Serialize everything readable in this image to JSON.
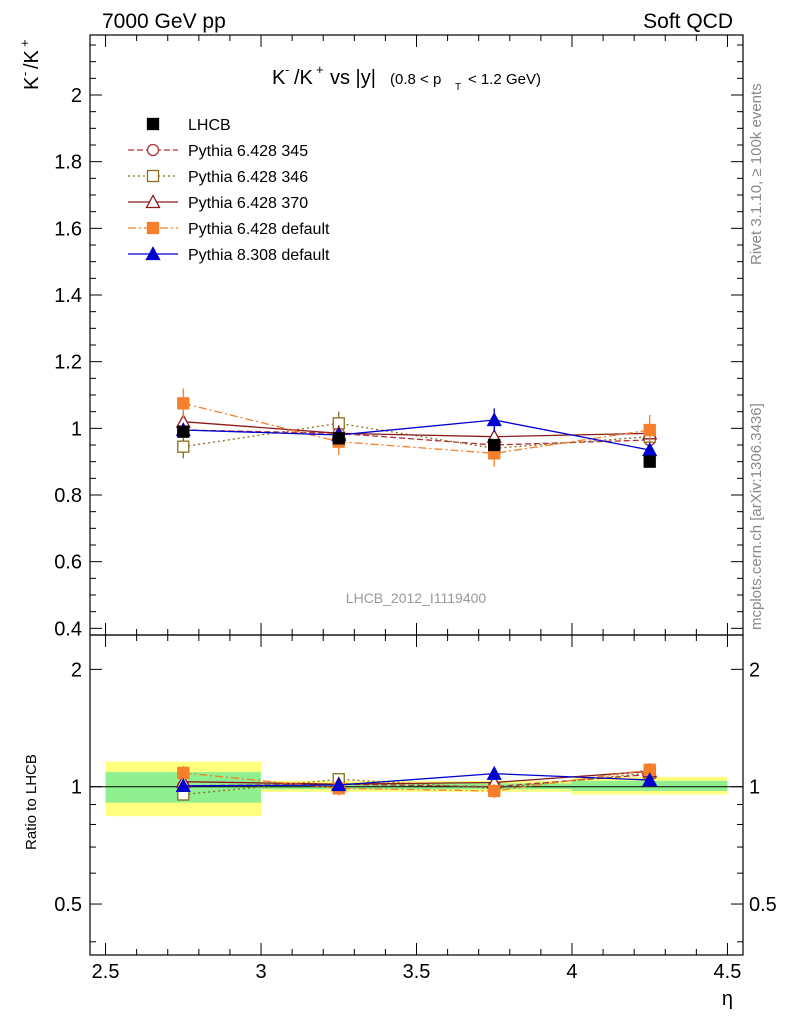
{
  "header": {
    "left": "7000 GeV pp",
    "right": "Soft QCD"
  },
  "side": {
    "rivet": "Rivet 3.1.10, ≥ 100k events",
    "mcplots": "mcplots.cern.ch [arXiv:1306.3436]"
  },
  "colors": {
    "lhcb": "#000000",
    "p345": "#b0303f",
    "p346": "#8b6d1e",
    "p370": "#8b1a1a",
    "pdefault": "#f57f2a",
    "p8": "#0000d0",
    "band_inner": "#90f090",
    "band_outer": "#ffff80"
  },
  "chart_data": [
    {
      "type": "scatter",
      "title": "K⁻/K⁺ vs |y|(0.8 < p_T < 1.2 GeV)",
      "title_main": "K",
      "title_vs": "vs |y|",
      "title_paren_open": "(0.8 < p",
      "title_paren_sub": "T",
      "title_paren_close": "< 1.2 GeV)",
      "ylabel": "K⁻/K⁺",
      "watermark": "LHCB_2012_I1119400",
      "xlim": [
        2.45,
        4.55
      ],
      "ylim": [
        0.38,
        2.18
      ],
      "yticks": [
        0.4,
        0.6,
        0.8,
        1.0,
        1.2,
        1.4,
        1.6,
        1.8,
        2.0
      ],
      "ytick_labels": [
        "0.4",
        "0.6",
        "0.8",
        "1",
        "1.2",
        "1.4",
        "1.6",
        "1.8",
        "2"
      ],
      "legend_position": "top-left",
      "series": [
        {
          "key": "lhcb",
          "name": "LHCB",
          "marker": "square-filled",
          "line": "none",
          "x": [
            2.75,
            3.25,
            3.75,
            4.25
          ],
          "y": [
            0.99,
            0.97,
            0.95,
            0.9
          ]
        },
        {
          "key": "p345",
          "name": "Pythia 6.428 345",
          "marker": "circle-open",
          "line": "dashed",
          "x": [
            2.75,
            3.25,
            3.75,
            4.25
          ],
          "y": [
            0.995,
            0.985,
            0.95,
            0.965
          ],
          "err": [
            0.02,
            0.02,
            0.02,
            0.02
          ]
        },
        {
          "key": "p346",
          "name": "Pythia 6.428 346",
          "marker": "square-open",
          "line": "dotted",
          "x": [
            2.75,
            3.25,
            3.75,
            4.25
          ],
          "y": [
            0.945,
            1.015,
            0.94,
            0.975
          ],
          "err": [
            0.035,
            0.035,
            0.03,
            0.03
          ]
        },
        {
          "key": "p370",
          "name": "Pythia 6.428 370",
          "marker": "triangle-open",
          "line": "solid",
          "x": [
            2.75,
            3.25,
            3.75,
            4.25
          ],
          "y": [
            1.02,
            0.985,
            0.975,
            0.985
          ],
          "err": [
            0.03,
            0.025,
            0.03,
            0.03
          ]
        },
        {
          "key": "pdefault",
          "name": "Pythia 6.428 default",
          "marker": "square-filled",
          "line": "dashdot",
          "x": [
            2.75,
            3.25,
            3.75,
            4.25
          ],
          "y": [
            1.075,
            0.96,
            0.925,
            0.995
          ],
          "err": [
            0.045,
            0.04,
            0.04,
            0.045
          ]
        },
        {
          "key": "p8",
          "name": "Pythia 8.308 default",
          "marker": "triangle-filled",
          "line": "solid",
          "x": [
            2.75,
            3.25,
            3.75,
            4.25
          ],
          "y": [
            0.995,
            0.98,
            1.025,
            0.935
          ],
          "err": [
            0.02,
            0.02,
            0.035,
            0.02
          ]
        }
      ]
    },
    {
      "type": "scatter",
      "ylabel": "Ratio to LHCB",
      "xlabel": "η",
      "xlim": [
        2.45,
        4.55
      ],
      "ylog": true,
      "ylim": [
        0.37,
        2.45
      ],
      "xticks": [
        2.5,
        3.0,
        3.5,
        4.0,
        4.5
      ],
      "xtick_labels": [
        "2.5",
        "3",
        "3.5",
        "4",
        "4.5"
      ],
      "yticks": [
        0.5,
        1.0,
        2.0
      ],
      "ytick_labels": [
        "0.5",
        "1",
        "2"
      ],
      "bands": [
        {
          "x": [
            2.5,
            3.0
          ],
          "inner": [
            0.91,
            1.09
          ],
          "outer": [
            0.84,
            1.16
          ]
        },
        {
          "x": [
            3.0,
            3.5
          ],
          "inner": [
            0.985,
            1.02
          ],
          "outer": [
            0.97,
            1.035
          ]
        },
        {
          "x": [
            3.5,
            4.0
          ],
          "inner": [
            0.985,
            1.02
          ],
          "outer": [
            0.97,
            1.035
          ]
        },
        {
          "x": [
            4.0,
            4.5
          ],
          "inner": [
            0.975,
            1.035
          ],
          "outer": [
            0.955,
            1.06
          ]
        }
      ],
      "series": [
        {
          "key": "p345",
          "x": [
            2.75,
            3.25,
            3.75,
            4.25
          ],
          "y": [
            1.005,
            1.015,
            1.0,
            1.075
          ],
          "err": [
            0.02,
            0.02,
            0.02,
            0.02
          ]
        },
        {
          "key": "p346",
          "x": [
            2.75,
            3.25,
            3.75,
            4.25
          ],
          "y": [
            0.955,
            1.045,
            0.99,
            1.085
          ],
          "err": [
            0.035,
            0.035,
            0.03,
            0.03
          ]
        },
        {
          "key": "p370",
          "x": [
            2.75,
            3.25,
            3.75,
            4.25
          ],
          "y": [
            1.03,
            1.015,
            1.025,
            1.095
          ],
          "err": [
            0.03,
            0.025,
            0.03,
            0.03
          ]
        },
        {
          "key": "pdefault",
          "x": [
            2.75,
            3.25,
            3.75,
            4.25
          ],
          "y": [
            1.085,
            0.99,
            0.975,
            1.105
          ],
          "err": [
            0.045,
            0.04,
            0.04,
            0.045
          ]
        },
        {
          "key": "p8",
          "x": [
            2.75,
            3.25,
            3.75,
            4.25
          ],
          "y": [
            1.005,
            1.01,
            1.08,
            1.04
          ],
          "err": [
            0.02,
            0.02,
            0.035,
            0.02
          ]
        }
      ]
    }
  ]
}
